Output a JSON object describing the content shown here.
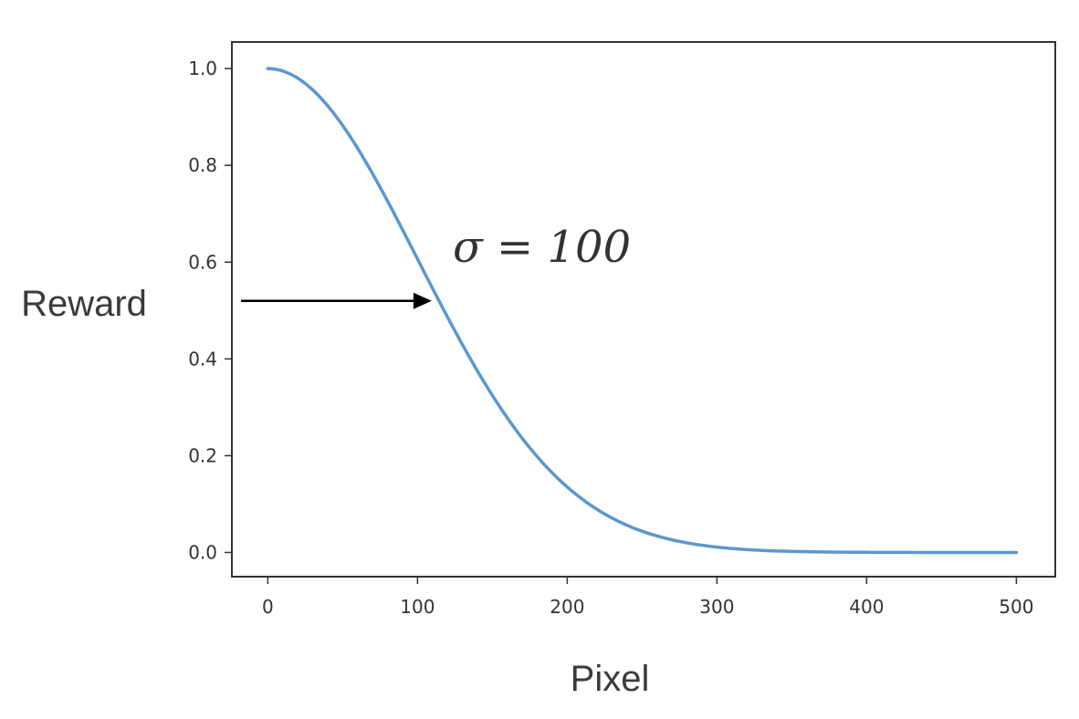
{
  "chart_data": {
    "type": "line",
    "title": "",
    "xlabel": "Pixel",
    "ylabel": "Reward",
    "xlim": [
      -24,
      526
    ],
    "ylim": [
      -0.05,
      1.055
    ],
    "xticks": [
      0,
      100,
      200,
      300,
      400,
      500
    ],
    "xtick_labels": [
      "0",
      "100",
      "200",
      "300",
      "400",
      "500"
    ],
    "yticks": [
      0.0,
      0.2,
      0.4,
      0.6,
      0.8,
      1.0
    ],
    "ytick_labels": [
      "0.0",
      "0.2",
      "0.4",
      "0.6",
      "0.8",
      "1.0"
    ],
    "grid": false,
    "legend": "none",
    "series": [
      {
        "function": "gaussian",
        "sigma": 100,
        "color": "#5b97cf",
        "x": [
          0,
          25,
          50,
          75,
          100,
          125,
          150,
          175,
          200,
          225,
          250,
          275,
          300,
          325,
          350,
          375,
          400,
          425,
          450,
          475,
          500
        ],
        "y": [
          1.0,
          0.969,
          0.882,
          0.755,
          0.607,
          0.458,
          0.325,
          0.216,
          0.135,
          0.079,
          0.044,
          0.023,
          0.011,
          0.005,
          0.002,
          0.001,
          0.0,
          0.0,
          0.0,
          0.0,
          0.0
        ]
      }
    ],
    "annotation": {
      "text": "σ = 100",
      "arrow_y": 0.52,
      "arrow_color": "#000000"
    }
  }
}
